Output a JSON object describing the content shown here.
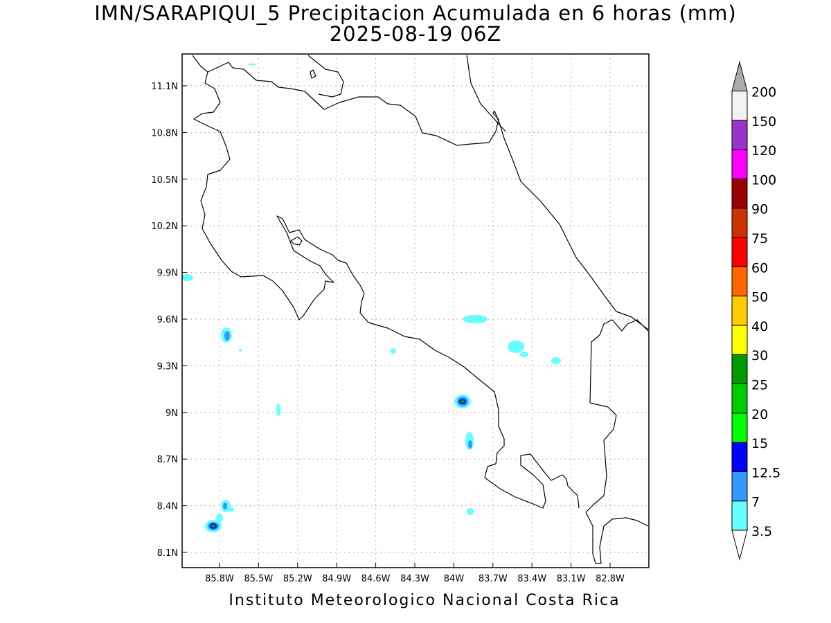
{
  "title": {
    "line1": "IMN/SARAPIQUI_5 Precipitacion Acumulada en 6 horas (mm)",
    "line2": "2025-08-19 06Z"
  },
  "footer": "Instituto Meteorologico Nacional Costa Rica",
  "map": {
    "lat_ticks": [
      "11.1N",
      "10.8N",
      "10.5N",
      "10.2N",
      "9.9N",
      "9.6N",
      "9.3N",
      "9N",
      "8.7N",
      "8.4N",
      "8.1N"
    ],
    "lon_ticks": [
      "85.8W",
      "85.5W",
      "85.2W",
      "84.9W",
      "84.6W",
      "84.3W",
      "84W",
      "83.7W",
      "83.4W",
      "83.1W",
      "82.8W"
    ]
  },
  "colorbar": {
    "levels": [
      "3.5",
      "7",
      "12.5",
      "15",
      "20",
      "25",
      "30",
      "40",
      "50",
      "60",
      "75",
      "90",
      "100",
      "120",
      "150",
      "200"
    ],
    "colors": [
      "#66ffff",
      "#3399ff",
      "#0000ff",
      "#00ff00",
      "#00cc00",
      "#009900",
      "#ffff00",
      "#ffcc00",
      "#ff6600",
      "#ff0000",
      "#cc3300",
      "#990000",
      "#ff00ff",
      "#9933cc",
      "#f2f2f2",
      "#aaaaaa"
    ]
  }
}
